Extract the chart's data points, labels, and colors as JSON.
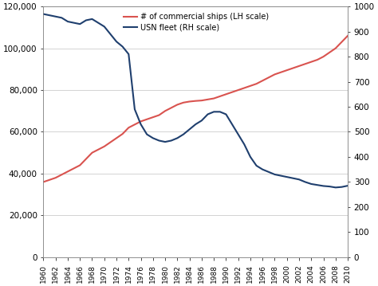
{
  "years": [
    1960,
    1961,
    1962,
    1963,
    1964,
    1965,
    1966,
    1967,
    1968,
    1969,
    1970,
    1971,
    1972,
    1973,
    1974,
    1975,
    1976,
    1977,
    1978,
    1979,
    1980,
    1981,
    1982,
    1983,
    1984,
    1985,
    1986,
    1987,
    1988,
    1989,
    1990,
    1991,
    1992,
    1993,
    1994,
    1995,
    1996,
    1997,
    1998,
    1999,
    2000,
    2001,
    2002,
    2003,
    2004,
    2005,
    2006,
    2007,
    2008,
    2009,
    2010
  ],
  "commercial_ships": [
    36000,
    37000,
    38000,
    39500,
    41000,
    42500,
    44000,
    47000,
    50000,
    51500,
    53000,
    55000,
    57000,
    59000,
    62000,
    63500,
    65000,
    66000,
    67000,
    68000,
    70000,
    71500,
    73000,
    74000,
    74500,
    74800,
    75000,
    75500,
    76000,
    77000,
    78000,
    79000,
    80000,
    81000,
    82000,
    83000,
    84500,
    86000,
    87500,
    88500,
    89500,
    90500,
    91500,
    92500,
    93500,
    94500,
    96000,
    98000,
    100000,
    103000,
    106000
  ],
  "usn_fleet": [
    970,
    965,
    960,
    955,
    940,
    935,
    930,
    945,
    950,
    935,
    920,
    890,
    860,
    840,
    810,
    590,
    530,
    490,
    475,
    465,
    460,
    465,
    475,
    490,
    510,
    530,
    545,
    570,
    580,
    580,
    570,
    530,
    490,
    450,
    400,
    365,
    350,
    340,
    330,
    325,
    320,
    315,
    310,
    300,
    292,
    288,
    284,
    282,
    278,
    280,
    285
  ],
  "xtick_years": [
    1960,
    1962,
    1964,
    1966,
    1968,
    1970,
    1972,
    1974,
    1976,
    1978,
    1980,
    1982,
    1984,
    1986,
    1988,
    1990,
    1992,
    1994,
    1996,
    1998,
    2000,
    2002,
    2004,
    2006,
    2008,
    2010
  ],
  "lh_ylim": [
    0,
    120000
  ],
  "rh_ylim": [
    0,
    1000
  ],
  "lh_yticks": [
    0,
    20000,
    40000,
    60000,
    80000,
    100000,
    120000
  ],
  "rh_yticks": [
    0,
    100,
    200,
    300,
    400,
    500,
    600,
    700,
    800,
    900,
    1000
  ],
  "color_commercial": "#d9534f",
  "color_usn": "#1f3f6e",
  "legend_commercial": "# of commercial ships (LH scale)",
  "legend_usn": "USN fleet (RH scale)",
  "background_color": "#ffffff",
  "grid_color": "#cccccc"
}
